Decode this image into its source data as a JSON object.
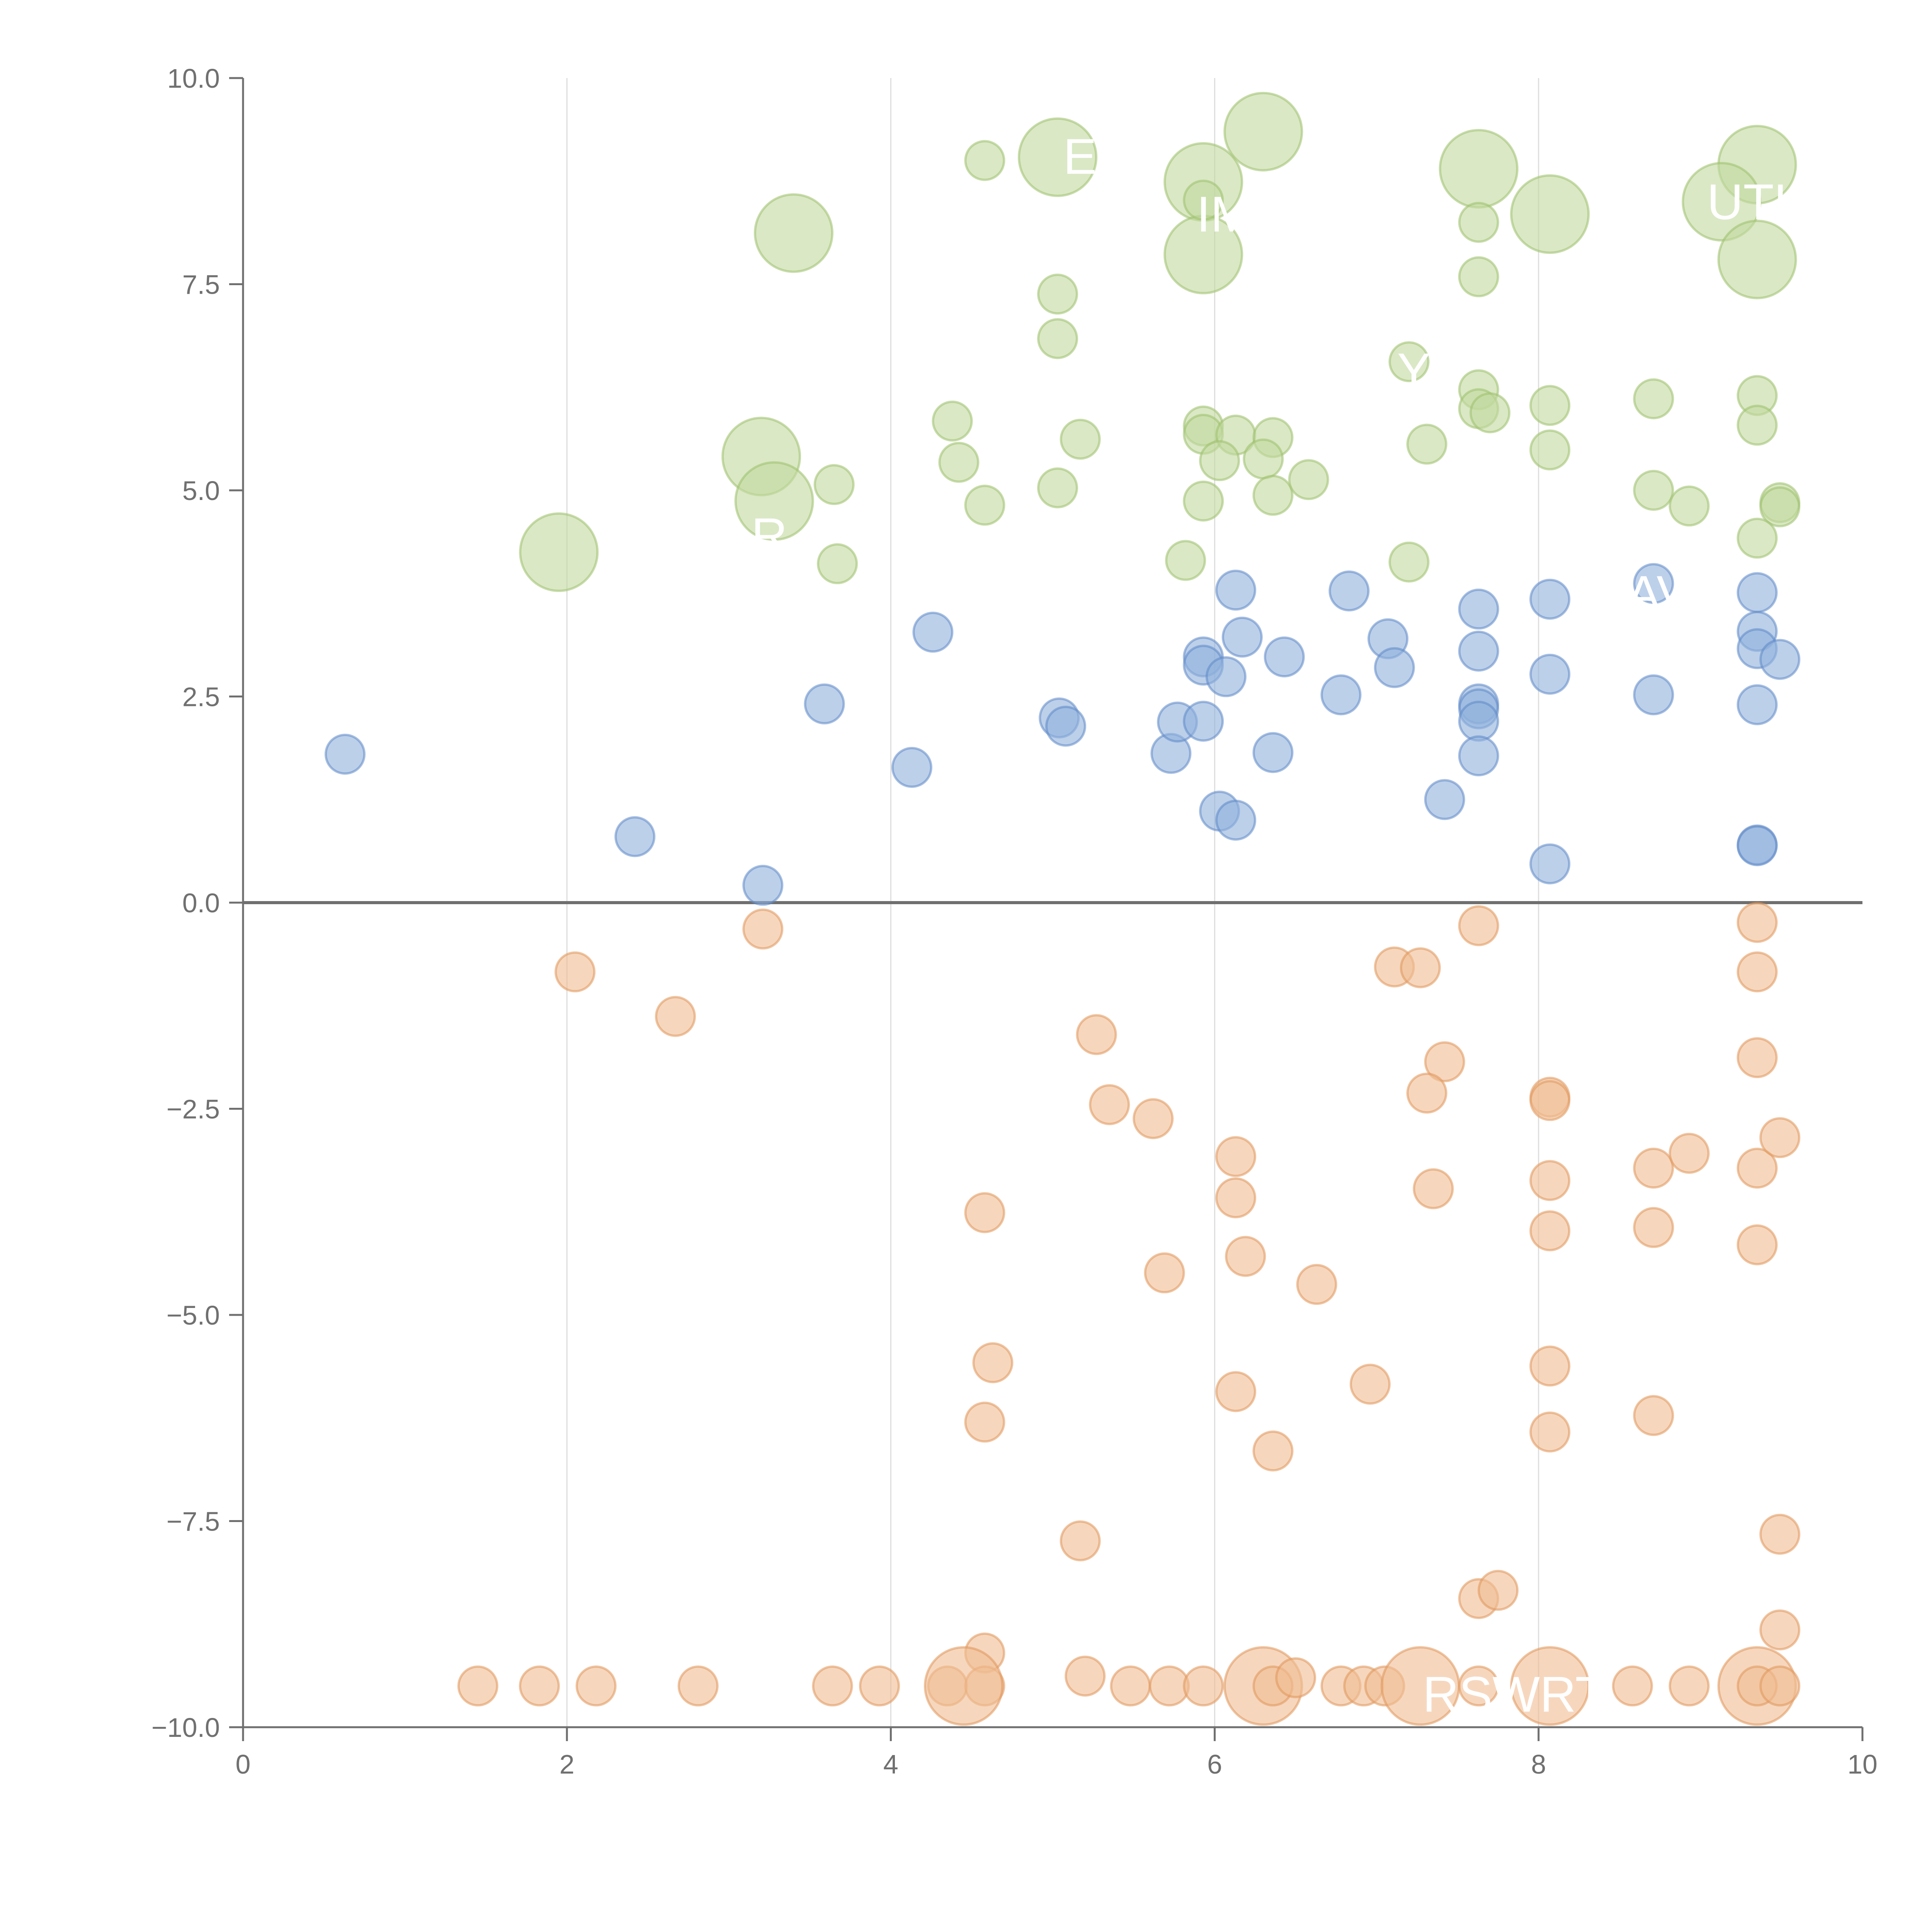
{
  "chart_data": {
    "type": "scatter",
    "xlim": [
      0,
      10
    ],
    "ylim": [
      -10,
      10
    ],
    "x_ticks": [
      "0",
      "2",
      "4",
      "6",
      "8",
      "10"
    ],
    "y_ticks": [
      "10.0",
      "7.5",
      "5.0",
      "2.5",
      "0.0",
      "−2.5",
      "−5.0",
      "−7.5",
      "−10.0"
    ],
    "x_tick_values": [
      0,
      2,
      4,
      6,
      8,
      10
    ],
    "y_tick_values": [
      10,
      7.5,
      5,
      2.5,
      0,
      -2.5,
      -5,
      -7.5,
      -10
    ],
    "grid": "vertical lines at x ticks",
    "reference_line_y": 0,
    "series": [
      {
        "color": "#8fb0dc",
        "stroke": "#5f89c6",
        "points": [
          [
            0.63,
            1.8
          ],
          [
            2.42,
            0.8
          ],
          [
            3.21,
            0.21
          ],
          [
            3.59,
            2.41
          ],
          [
            4.13,
            1.64
          ],
          [
            4.26,
            3.28
          ],
          [
            5.04,
            2.24
          ],
          [
            5.08,
            2.14
          ],
          [
            5.73,
            1.81
          ],
          [
            5.77,
            2.19
          ],
          [
            5.93,
            2.2
          ],
          [
            5.93,
            2.98
          ],
          [
            5.93,
            2.88
          ],
          [
            6.03,
            1.11
          ],
          [
            6.07,
            2.74
          ],
          [
            6.13,
            1.0
          ],
          [
            6.13,
            3.79
          ],
          [
            6.17,
            3.22
          ],
          [
            6.36,
            1.82
          ],
          [
            6.43,
            2.98
          ],
          [
            6.78,
            2.52
          ],
          [
            6.83,
            3.78
          ],
          [
            7.07,
            3.2
          ],
          [
            7.11,
            2.85
          ],
          [
            7.42,
            1.25
          ],
          [
            7.63,
            3.56
          ],
          [
            7.63,
            3.05
          ],
          [
            7.63,
            2.41
          ],
          [
            7.63,
            2.35
          ],
          [
            7.63,
            2.2
          ],
          [
            7.63,
            1.78
          ],
          [
            8.07,
            3.68
          ],
          [
            8.07,
            2.77
          ],
          [
            8.07,
            0.47
          ],
          [
            8.71,
            3.87
          ],
          [
            8.71,
            2.52
          ],
          [
            9.35,
            3.76
          ],
          [
            9.35,
            3.29
          ],
          [
            9.35,
            3.08
          ],
          [
            9.35,
            2.4
          ],
          [
            9.35,
            0.7
          ],
          [
            9.35,
            0.69
          ],
          [
            9.49,
            2.95
          ]
        ]
      },
      {
        "color": "#c2d99e",
        "stroke": "#9cbf6c",
        "points": [
          [
            4.58,
            9.0
          ],
          [
            5.03,
            9.04,
            "big"
          ],
          [
            5.93,
            8.74,
            "big"
          ],
          [
            6.3,
            9.35,
            "big"
          ],
          [
            7.63,
            8.9,
            "big"
          ],
          [
            8.07,
            8.35,
            "big"
          ],
          [
            9.35,
            8.95,
            "big"
          ],
          [
            9.13,
            8.5,
            "big"
          ],
          [
            9.35,
            7.8,
            "big"
          ],
          [
            3.4,
            8.12,
            "big"
          ],
          [
            5.93,
            7.86,
            "big"
          ],
          [
            5.93,
            8.52
          ],
          [
            7.63,
            8.25
          ],
          [
            7.63,
            7.59
          ],
          [
            5.03,
            7.38
          ],
          [
            5.03,
            6.84
          ],
          [
            7.2,
            6.56
          ],
          [
            7.63,
            6.22
          ],
          [
            7.63,
            5.99
          ],
          [
            7.7,
            5.94
          ],
          [
            8.07,
            6.03
          ],
          [
            8.07,
            5.49
          ],
          [
            8.71,
            6.11
          ],
          [
            9.35,
            6.15
          ],
          [
            9.35,
            5.79
          ],
          [
            4.38,
            5.84
          ],
          [
            4.42,
            5.34
          ],
          [
            5.17,
            5.62
          ],
          [
            5.93,
            5.78
          ],
          [
            5.93,
            5.68
          ],
          [
            6.13,
            5.67
          ],
          [
            6.36,
            5.64
          ],
          [
            6.3,
            5.38
          ],
          [
            6.03,
            5.36
          ],
          [
            7.31,
            5.56
          ],
          [
            3.2,
            5.41,
            "big"
          ],
          [
            3.65,
            5.07
          ],
          [
            3.28,
            4.87,
            "big"
          ],
          [
            4.58,
            4.82
          ],
          [
            5.03,
            5.03
          ],
          [
            5.93,
            4.87
          ],
          [
            6.36,
            4.94
          ],
          [
            6.58,
            5.13
          ],
          [
            8.71,
            5.0
          ],
          [
            8.93,
            4.81
          ],
          [
            9.49,
            4.85
          ],
          [
            9.49,
            4.8
          ],
          [
            9.35,
            4.42
          ],
          [
            1.95,
            4.25,
            "big"
          ],
          [
            3.67,
            4.11
          ],
          [
            5.82,
            4.15
          ],
          [
            7.2,
            4.13
          ]
        ]
      },
      {
        "color": "#f0bd93",
        "stroke": "#e0955a",
        "points": [
          [
            3.21,
            -0.32
          ],
          [
            2.05,
            -0.84
          ],
          [
            2.67,
            -1.38
          ],
          [
            7.63,
            -0.28
          ],
          [
            7.11,
            -0.78
          ],
          [
            7.27,
            -0.79
          ],
          [
            9.35,
            -0.24
          ],
          [
            9.35,
            -0.84
          ],
          [
            9.35,
            -1.88
          ],
          [
            5.27,
            -1.6
          ],
          [
            5.35,
            -2.45
          ],
          [
            5.62,
            -2.62
          ],
          [
            7.42,
            -1.93
          ],
          [
            7.31,
            -2.31
          ],
          [
            8.07,
            -2.36
          ],
          [
            8.07,
            -2.4
          ],
          [
            6.13,
            -3.08
          ],
          [
            6.13,
            -3.58
          ],
          [
            7.35,
            -3.47
          ],
          [
            8.07,
            -3.37
          ],
          [
            8.07,
            -3.98
          ],
          [
            8.71,
            -3.22
          ],
          [
            8.71,
            -3.94
          ],
          [
            8.93,
            -3.04
          ],
          [
            9.35,
            -3.22
          ],
          [
            9.35,
            -4.15
          ],
          [
            9.49,
            -2.85
          ],
          [
            4.58,
            -3.76
          ],
          [
            5.69,
            -4.49
          ],
          [
            6.19,
            -4.29
          ],
          [
            6.63,
            -4.63
          ],
          [
            4.63,
            -5.58
          ],
          [
            4.58,
            -6.3
          ],
          [
            6.13,
            -5.93
          ],
          [
            6.36,
            -6.65
          ],
          [
            6.96,
            -5.84
          ],
          [
            8.07,
            -5.62
          ],
          [
            8.07,
            -6.42
          ],
          [
            8.71,
            -6.22
          ],
          [
            5.17,
            -7.74
          ],
          [
            9.49,
            -7.66
          ],
          [
            7.63,
            -8.44
          ],
          [
            7.75,
            -8.34
          ],
          [
            9.49,
            -8.82
          ],
          [
            4.58,
            -9.1
          ],
          [
            1.45,
            -9.5
          ],
          [
            1.83,
            -9.5
          ],
          [
            2.18,
            -9.5
          ],
          [
            2.81,
            -9.5
          ],
          [
            3.64,
            -9.5
          ],
          [
            3.93,
            -9.5
          ],
          [
            4.35,
            -9.5
          ],
          [
            4.58,
            -9.5
          ],
          [
            4.45,
            -9.5,
            "big"
          ],
          [
            5.2,
            -9.38
          ],
          [
            5.48,
            -9.5
          ],
          [
            5.72,
            -9.5
          ],
          [
            5.93,
            -9.5
          ],
          [
            6.3,
            -9.5,
            "big"
          ],
          [
            6.36,
            -9.5
          ],
          [
            6.5,
            -9.4
          ],
          [
            6.78,
            -9.5
          ],
          [
            6.92,
            -9.5
          ],
          [
            7.05,
            -9.5
          ],
          [
            7.27,
            -9.5,
            "big"
          ],
          [
            7.63,
            -9.5
          ],
          [
            8.07,
            -9.5,
            "big"
          ],
          [
            8.58,
            -9.5
          ],
          [
            8.93,
            -9.5
          ],
          [
            9.35,
            -9.5,
            "big"
          ],
          [
            9.35,
            -9.5
          ],
          [
            9.49,
            -9.5
          ]
        ]
      }
    ],
    "labels": [
      {
        "text": "EC",
        "x": 5.28,
        "y": 9.05
      },
      {
        "text": "IM",
        "x": 6.06,
        "y": 8.35
      },
      {
        "text": "UTK",
        "x": 9.35,
        "y": 8.5
      },
      {
        "text": "Y",
        "x": 7.23,
        "y": 6.45
      },
      {
        "text": "R",
        "x": 3.25,
        "y": 4.45
      },
      {
        "text": "AV",
        "x": 8.74,
        "y": 3.75
      },
      {
        "text": "RSWRT",
        "x": 7.85,
        "y": -9.6
      }
    ]
  }
}
